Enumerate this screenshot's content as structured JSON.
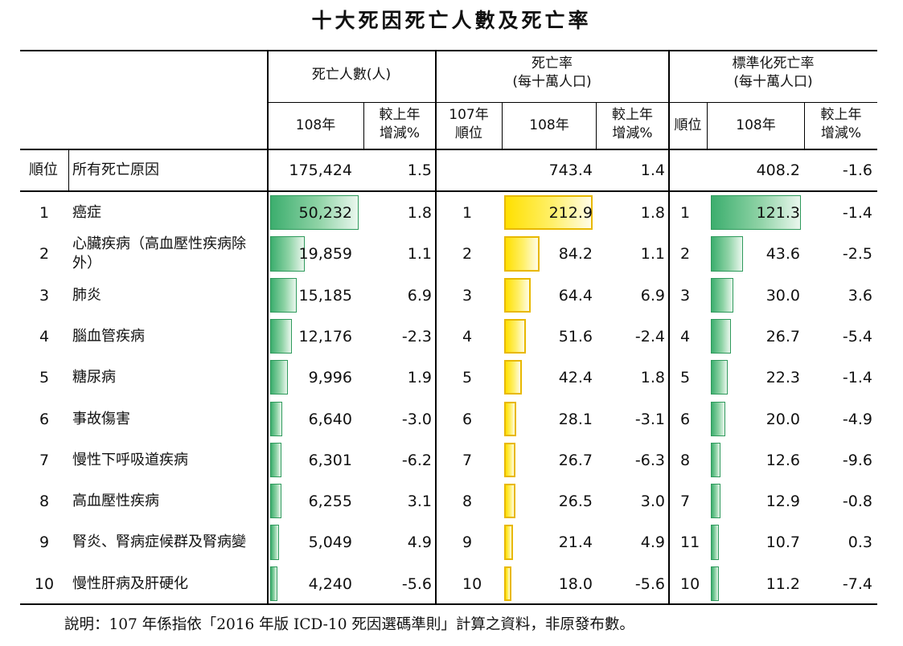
{
  "title": "十大死因死亡人數及死亡率",
  "headers": {
    "deaths_group": "死亡人數(人)",
    "rate_group_line1": "死亡率",
    "rate_group_line2": "(每十萬人口)",
    "std_group_line1": "標準化死亡率",
    "std_group_line2": "(每十萬人口)",
    "year108": "108年",
    "change_line1": "較上年",
    "change_line2": "增減%",
    "rank107_line1": "107年",
    "rank107_line2": "順位",
    "rank": "順位"
  },
  "total_row": {
    "rank_label": "順位",
    "cause": "所有死亡原因",
    "deaths": "175,424",
    "deaths_change": "1.5",
    "rate": "743.4",
    "rate_change": "1.4",
    "std_rate": "408.2",
    "std_change": "-1.6"
  },
  "rows": [
    {
      "rank": "1",
      "cause": "癌症",
      "deaths": "50,232",
      "deaths_change": "1.8",
      "rank107": "1",
      "rate": "212.9",
      "rate_change": "1.8",
      "std_rank": "1",
      "std_rate": "121.3",
      "std_change": "-1.4"
    },
    {
      "rank": "2",
      "cause": "心臟疾病（高血壓性疾病除外）",
      "deaths": "19,859",
      "deaths_change": "1.1",
      "rank107": "2",
      "rate": "84.2",
      "rate_change": "1.1",
      "std_rank": "2",
      "std_rate": "43.6",
      "std_change": "-2.5"
    },
    {
      "rank": "3",
      "cause": "肺炎",
      "deaths": "15,185",
      "deaths_change": "6.9",
      "rank107": "3",
      "rate": "64.4",
      "rate_change": "6.9",
      "std_rank": "3",
      "std_rate": "30.0",
      "std_change": "3.6"
    },
    {
      "rank": "4",
      "cause": "腦血管疾病",
      "deaths": "12,176",
      "deaths_change": "-2.3",
      "rank107": "4",
      "rate": "51.6",
      "rate_change": "-2.4",
      "std_rank": "4",
      "std_rate": "26.7",
      "std_change": "-5.4"
    },
    {
      "rank": "5",
      "cause": "糖尿病",
      "deaths": "9,996",
      "deaths_change": "1.9",
      "rank107": "5",
      "rate": "42.4",
      "rate_change": "1.8",
      "std_rank": "5",
      "std_rate": "22.3",
      "std_change": "-1.4"
    },
    {
      "rank": "6",
      "cause": "事故傷害",
      "deaths": "6,640",
      "deaths_change": "-3.0",
      "rank107": "6",
      "rate": "28.1",
      "rate_change": "-3.1",
      "std_rank": "6",
      "std_rate": "20.0",
      "std_change": "-4.9"
    },
    {
      "rank": "7",
      "cause": "慢性下呼吸道疾病",
      "deaths": "6,301",
      "deaths_change": "-6.2",
      "rank107": "7",
      "rate": "26.7",
      "rate_change": "-6.3",
      "std_rank": "8",
      "std_rate": "12.6",
      "std_change": "-9.6"
    },
    {
      "rank": "8",
      "cause": "高血壓性疾病",
      "deaths": "6,255",
      "deaths_change": "3.1",
      "rank107": "8",
      "rate": "26.5",
      "rate_change": "3.0",
      "std_rank": "7",
      "std_rate": "12.9",
      "std_change": "-0.8"
    },
    {
      "rank": "9",
      "cause": "腎炎、腎病症候群及腎病變",
      "deaths": "5,049",
      "deaths_change": "4.9",
      "rank107": "9",
      "rate": "21.4",
      "rate_change": "4.9",
      "std_rank": "11",
      "std_rate": "10.7",
      "std_change": "0.3"
    },
    {
      "rank": "10",
      "cause": "慢性肝病及肝硬化",
      "deaths": "4,240",
      "deaths_change": "-5.6",
      "rank107": "10",
      "rate": "18.0",
      "rate_change": "-5.6",
      "std_rank": "10",
      "std_rate": "11.2",
      "std_change": "-7.4"
    }
  ],
  "note": "說明：107 年係指依「2016 年版 ICD-10 死因選碼準則」計算之資料，非原發布數。",
  "colors": {
    "green_bar": "#3cae6e",
    "yellow_bar": "#ffe000",
    "yellow_border": "#e8b800"
  },
  "chart_data": {
    "type": "table",
    "title": "十大死因死亡人數及死亡率",
    "categories": [
      "癌症",
      "心臟疾病（高血壓性疾病除外）",
      "肺炎",
      "腦血管疾病",
      "糖尿病",
      "事故傷害",
      "慢性下呼吸道疾病",
      "高血壓性疾病",
      "腎炎、腎病症候群及腎病變",
      "慢性肝病及肝硬化"
    ],
    "series": [
      {
        "name": "死亡人數(人)",
        "values": [
          50232,
          19859,
          15185,
          12176,
          9996,
          6640,
          6301,
          6255,
          5049,
          4240
        ]
      },
      {
        "name": "死亡率",
        "values": [
          212.9,
          84.2,
          64.4,
          51.6,
          42.4,
          28.1,
          26.7,
          26.5,
          21.4,
          18.0
        ]
      },
      {
        "name": "標準化死亡率",
        "values": [
          121.3,
          43.6,
          30.0,
          26.7,
          22.3,
          20.0,
          12.6,
          12.9,
          10.7,
          11.2
        ]
      }
    ]
  }
}
